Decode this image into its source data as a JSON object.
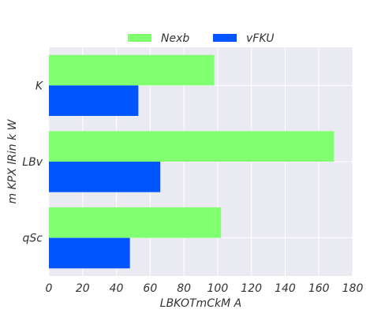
{
  "chart_data": {
    "type": "bar",
    "orientation": "horizontal",
    "categories": [
      "K",
      "LBv",
      "qSc"
    ],
    "series": [
      {
        "name": "Nexb",
        "values": [
          98,
          169,
          102
        ],
        "color": "#80ff70"
      },
      {
        "name": "vFKU",
        "values": [
          53,
          66,
          48
        ],
        "color": "#0055ff"
      }
    ],
    "xlabel": "LBKOTmCkM A",
    "ylabel": "m KPX lRin k W",
    "xlim": [
      0,
      180
    ],
    "xticks": [
      0,
      20,
      40,
      60,
      80,
      100,
      120,
      140,
      160,
      180
    ],
    "grid": true,
    "legend_position": "top-center",
    "background": "#eaeaf2"
  }
}
